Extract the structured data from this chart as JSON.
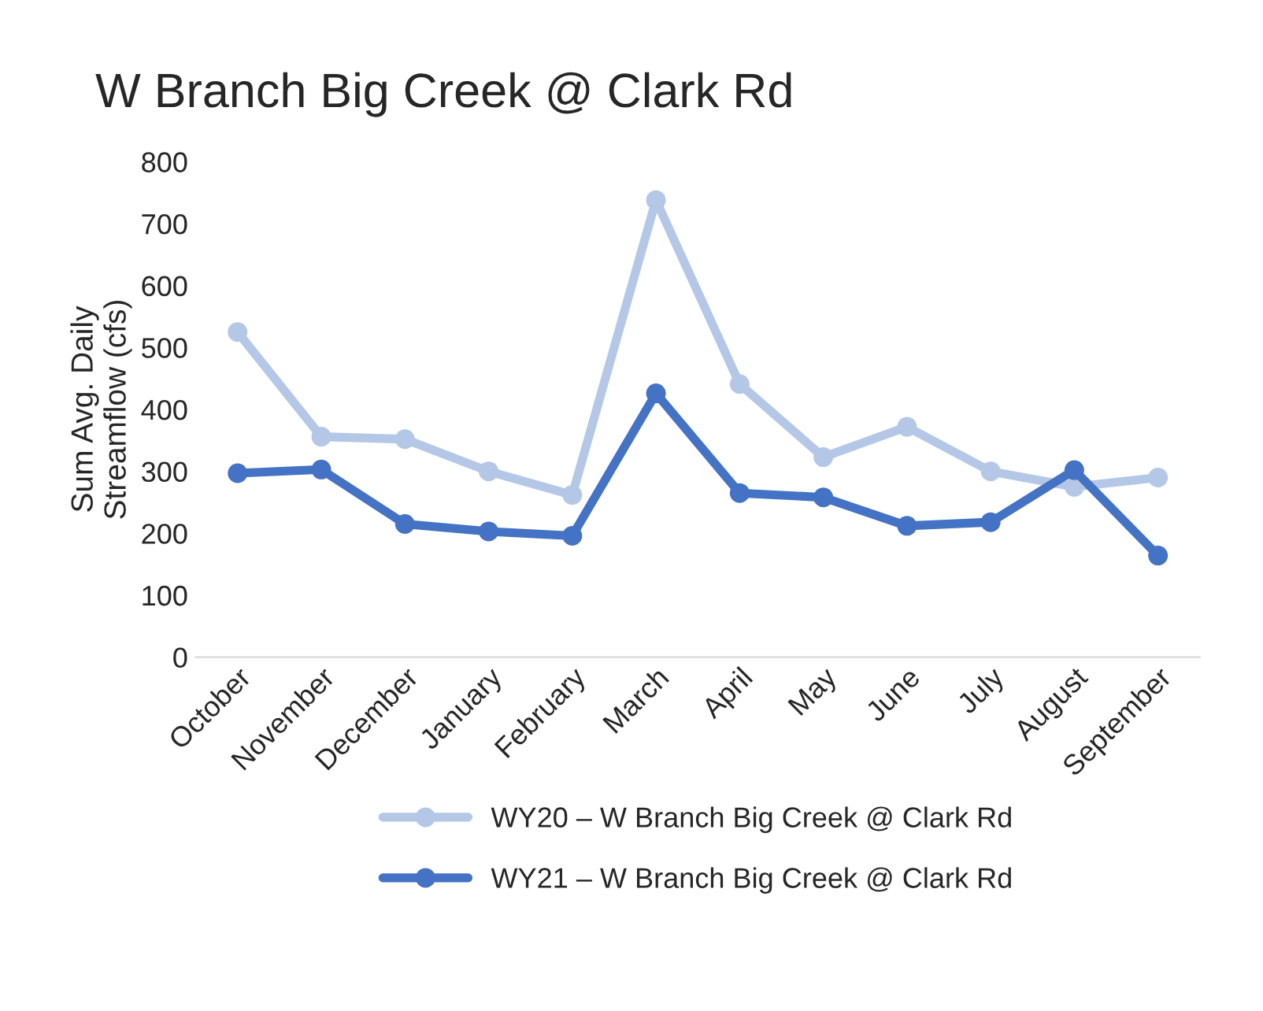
{
  "chart_data": {
    "type": "line",
    "title": "W Branch Big Creek @ Clark Rd",
    "ylabel": "Sum Avg. Daily\nStreamflow (cfs)",
    "categories": [
      "October",
      "November",
      "December",
      "January",
      "February",
      "March",
      "April",
      "May",
      "June",
      "July",
      "August",
      "September"
    ],
    "series": [
      {
        "name": "WY20 – W Branch Big Creek @ Clark Rd",
        "color": "#b4c7e7",
        "values": [
          525,
          356,
          352,
          300,
          262,
          738,
          441,
          323,
          372,
          300,
          275,
          290
        ]
      },
      {
        "name": "WY21 – W Branch Big Creek @ Clark Rd",
        "color": "#4472c4",
        "values": [
          297,
          303,
          215,
          203,
          196,
          426,
          265,
          258,
          212,
          218,
          302,
          164
        ]
      }
    ],
    "ylim": [
      0,
      800
    ],
    "yticks": [
      0,
      100,
      200,
      300,
      400,
      500,
      600,
      700,
      800
    ],
    "grid": false,
    "legend": "bottom",
    "marker": "circle",
    "line_style": "solid"
  }
}
